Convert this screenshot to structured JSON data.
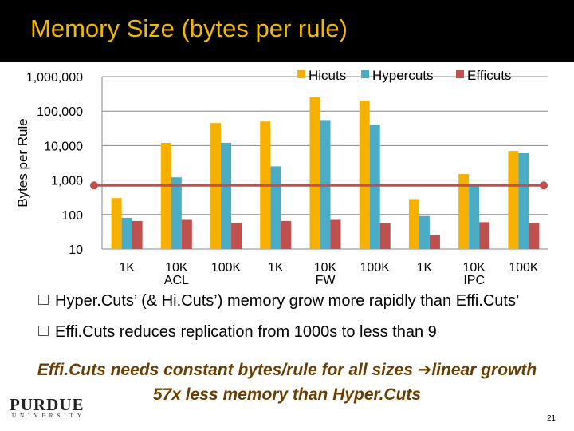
{
  "slide": {
    "title": "Memory Size (bytes per rule)",
    "bullets": [
      "Hyper.Cuts’ (& Hi.Cuts’) memory grow more rapidly than Effi.Cuts’",
      "Effi.Cuts reduces replication from 1000s to less than 9"
    ],
    "note_line1_before": "Effi.Cuts needs constant bytes/rule for all sizes ",
    "note_arrow": "➔",
    "note_line1_after": "linear growth",
    "note_line2": "57x less memory than Hyper.Cuts",
    "logo_main": "PURDUE",
    "logo_sub": "UNIVERSITY",
    "page_number": "21"
  },
  "colors": {
    "title": "#f2b800",
    "hicuts": "#f5b000",
    "hypercuts": "#4bacc6",
    "efficuts": "#c0504d",
    "reference_line": "#c0504d",
    "note": "#6b3e00"
  },
  "chart_data": {
    "type": "bar",
    "scale": "log",
    "ylabel": "Bytes per Rule",
    "ylim": [
      10,
      1000000
    ],
    "yticks": [
      10,
      100,
      1000,
      10000,
      100000,
      1000000
    ],
    "ytick_labels": [
      "10",
      "100",
      "1,000",
      "10,000",
      "100,000",
      "1,000,000"
    ],
    "categories": [
      "1K",
      "10K",
      "100K",
      "1K",
      "10K",
      "100K",
      "1K",
      "10K",
      "100K"
    ],
    "groups": [
      "ACL",
      "FW",
      "IPC"
    ],
    "reference_line_value": 700,
    "legend_position": "top-right",
    "series": [
      {
        "name": "Hicuts",
        "values": [
          300,
          12000,
          45000,
          50000,
          250000,
          200000,
          280,
          1500,
          7000
        ]
      },
      {
        "name": "Hypercuts",
        "values": [
          80,
          1200,
          12000,
          2500,
          55000,
          40000,
          90,
          700,
          6000
        ]
      },
      {
        "name": "Efficuts",
        "values": [
          65,
          70,
          55,
          65,
          70,
          55,
          25,
          60,
          55
        ]
      }
    ]
  }
}
